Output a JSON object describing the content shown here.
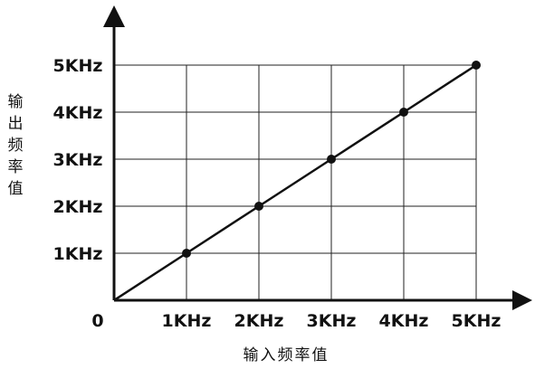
{
  "chart_data": {
    "type": "line",
    "xlabel": "输入频率值",
    "ylabel": "输出频率值",
    "origin_label": "0",
    "x_ticks": [
      "1KHz",
      "2KHz",
      "3KHz",
      "4KHz",
      "5KHz"
    ],
    "y_ticks": [
      "1KHz",
      "2KHz",
      "3KHz",
      "4KHz",
      "5KHz"
    ],
    "xlim": [
      0,
      5
    ],
    "ylim": [
      0,
      5
    ],
    "grid": true,
    "series": [
      {
        "x": [
          0,
          1,
          2,
          3,
          4,
          5
        ],
        "y": [
          0,
          1,
          2,
          3,
          4,
          5
        ],
        "markers": [
          1,
          2,
          3,
          4,
          5
        ]
      }
    ]
  }
}
